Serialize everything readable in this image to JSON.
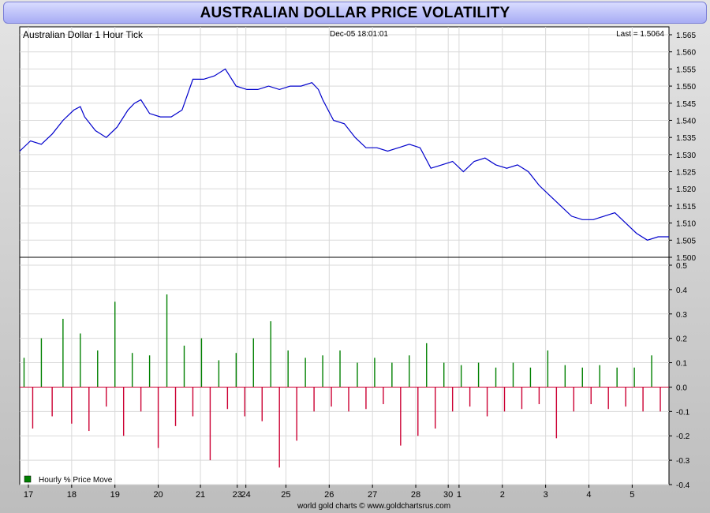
{
  "title": "AUSTRALIAN DOLLAR PRICE VOLATILITY",
  "footer": "world gold charts © www.goldchartsrus.com",
  "chart_data": [
    {
      "type": "line",
      "label": "Australian Dollar 1 Hour Tick",
      "timestamp": "Dec-05  18:01:01",
      "last_label": "Last = 1.5064",
      "ylim": [
        1.5,
        1.565
      ],
      "yticks": [
        1.5,
        1.505,
        1.51,
        1.515,
        1.52,
        1.525,
        1.53,
        1.535,
        1.54,
        1.545,
        1.55,
        1.555,
        1.56,
        1.565
      ],
      "ytick_labels": [
        "1.500",
        "1.505",
        "1.510",
        "1.515",
        "1.520",
        "1.525",
        "1.530",
        "1.535",
        "1.540",
        "1.545",
        "1.550",
        "1.555",
        "1.560",
        "1.565"
      ],
      "line_color": "#0000cc",
      "series": [
        {
          "x": [
            0.0,
            0.5,
            1.0,
            1.5,
            2.0,
            2.5,
            2.8,
            3.0,
            3.5,
            4.0,
            4.5,
            5.0,
            5.3,
            5.6,
            6.0,
            6.5,
            7.0,
            7.5,
            8.0,
            8.5,
            9.0,
            9.5,
            10.0,
            10.5,
            11.0,
            11.5,
            12.0,
            12.5,
            13.0,
            13.5,
            13.8,
            14.0,
            14.5,
            15.0,
            15.5,
            16.0,
            16.5,
            17.0,
            17.5,
            18.0,
            18.5,
            19.0,
            19.5,
            20.0,
            20.5,
            21.0,
            21.5,
            22.0,
            22.5,
            23.0,
            23.5,
            24.0,
            24.5,
            25.0,
            25.5,
            26.0,
            26.5,
            27.0,
            27.5,
            28.0,
            28.5,
            29.0,
            29.5,
            30.0
          ],
          "y": [
            1.531,
            1.534,
            1.533,
            1.536,
            1.54,
            1.543,
            1.544,
            1.541,
            1.537,
            1.535,
            1.538,
            1.543,
            1.545,
            1.546,
            1.542,
            1.541,
            1.541,
            1.543,
            1.552,
            1.552,
            1.553,
            1.555,
            1.55,
            1.549,
            1.549,
            1.55,
            1.549,
            1.55,
            1.55,
            1.551,
            1.549,
            1.546,
            1.54,
            1.539,
            1.535,
            1.532,
            1.532,
            1.531,
            1.532,
            1.533,
            1.532,
            1.526,
            1.527,
            1.528,
            1.525,
            1.528,
            1.529,
            1.527,
            1.526,
            1.527,
            1.525,
            1.521,
            1.518,
            1.515,
            1.512,
            1.511,
            1.511,
            1.512,
            1.513,
            1.51,
            1.507,
            1.505,
            1.506,
            1.506
          ]
        }
      ]
    },
    {
      "type": "bar",
      "label": "Hourly % Price Move",
      "ylim": [
        -0.4,
        0.5
      ],
      "yticks": [
        -0.4,
        -0.3,
        -0.2,
        -0.1,
        0.0,
        0.1,
        0.2,
        0.3,
        0.4,
        0.5
      ],
      "ytick_labels": [
        "-0.4",
        "-0.3",
        "-0.2",
        "-0.1",
        "0.0",
        "0.1",
        "0.2",
        "0.3",
        "0.4",
        "0.5"
      ],
      "positive_color": "#008000",
      "negative_color": "#cc0033",
      "series": [
        {
          "name": "Hourly % Price Move",
          "x": [
            0.2,
            0.6,
            1.0,
            1.5,
            2.0,
            2.4,
            2.8,
            3.2,
            3.6,
            4.0,
            4.4,
            4.8,
            5.2,
            5.6,
            6.0,
            6.4,
            6.8,
            7.2,
            7.6,
            8.0,
            8.4,
            8.8,
            9.2,
            9.6,
            10.0,
            10.4,
            10.8,
            11.2,
            11.6,
            12.0,
            12.4,
            12.8,
            13.2,
            13.6,
            14.0,
            14.4,
            14.8,
            15.2,
            15.6,
            16.0,
            16.4,
            16.8,
            17.2,
            17.6,
            18.0,
            18.4,
            18.8,
            19.2,
            19.6,
            20.0,
            20.4,
            20.8,
            21.2,
            21.6,
            22.0,
            22.4,
            22.8,
            23.2,
            23.6,
            24.0,
            24.4,
            24.8,
            25.2,
            25.6,
            26.0,
            26.4,
            26.8,
            27.2,
            27.6,
            28.0,
            28.4,
            28.8,
            29.2,
            29.6
          ],
          "values": [
            0.12,
            -0.17,
            0.2,
            -0.12,
            0.28,
            -0.15,
            0.22,
            -0.18,
            0.15,
            -0.08,
            0.35,
            -0.2,
            0.14,
            -0.1,
            0.13,
            -0.25,
            0.38,
            -0.16,
            0.17,
            -0.12,
            0.2,
            -0.3,
            0.11,
            -0.09,
            0.14,
            -0.12,
            0.2,
            -0.14,
            0.27,
            -0.33,
            0.15,
            -0.22,
            0.12,
            -0.1,
            0.13,
            -0.08,
            0.15,
            -0.1,
            0.1,
            -0.09,
            0.12,
            -0.07,
            0.1,
            -0.24,
            0.13,
            -0.2,
            0.18,
            -0.17,
            0.1,
            -0.1,
            0.09,
            -0.08,
            0.1,
            -0.12,
            0.08,
            -0.1,
            0.1,
            -0.09,
            0.08,
            -0.07,
            0.15,
            -0.21,
            0.09,
            -0.1,
            0.08,
            -0.07,
            0.09,
            -0.09,
            0.08,
            -0.08,
            0.08,
            -0.1,
            0.13,
            -0.1
          ]
        }
      ]
    },
    {
      "x_ticks": [
        {
          "x": 0.4,
          "label": "17"
        },
        {
          "x": 2.4,
          "label": "18"
        },
        {
          "x": 4.4,
          "label": "19"
        },
        {
          "x": 6.4,
          "label": "20"
        },
        {
          "x": 8.35,
          "label": "21"
        },
        {
          "x": 10.05,
          "label": "23"
        },
        {
          "x": 10.45,
          "label": "24"
        },
        {
          "x": 12.3,
          "label": "25"
        },
        {
          "x": 14.3,
          "label": "26"
        },
        {
          "x": 16.3,
          "label": "27"
        },
        {
          "x": 18.3,
          "label": "28"
        },
        {
          "x": 19.8,
          "label": "30"
        },
        {
          "x": 20.3,
          "label": "1"
        },
        {
          "x": 22.3,
          "label": "2"
        },
        {
          "x": 24.3,
          "label": "3"
        },
        {
          "x": 26.3,
          "label": "4"
        },
        {
          "x": 28.3,
          "label": "5"
        }
      ],
      "x_range": [
        0,
        30
      ]
    }
  ]
}
